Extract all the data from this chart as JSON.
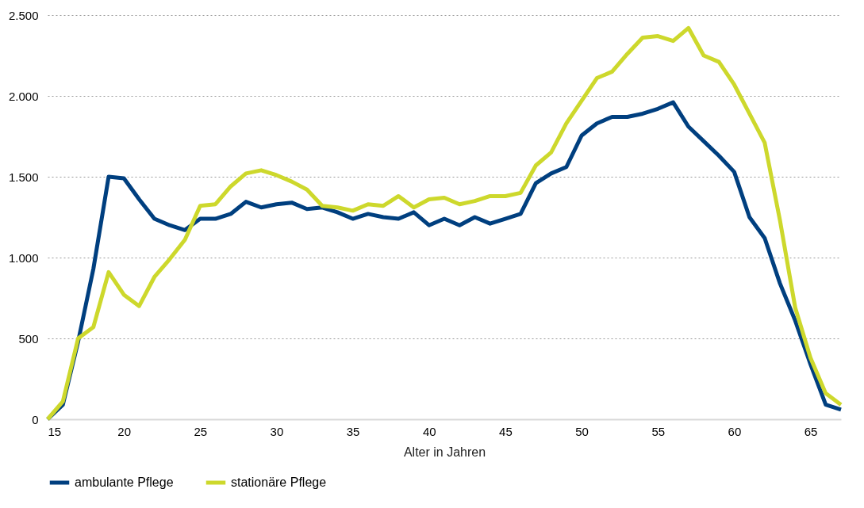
{
  "chart_data": {
    "type": "line",
    "xlabel": "Alter in Jahren",
    "x": [
      15,
      16,
      17,
      18,
      19,
      20,
      21,
      22,
      23,
      24,
      25,
      26,
      27,
      28,
      29,
      30,
      31,
      32,
      33,
      34,
      35,
      36,
      37,
      38,
      39,
      40,
      41,
      42,
      43,
      44,
      45,
      46,
      47,
      48,
      49,
      50,
      51,
      52,
      53,
      54,
      55,
      56,
      57,
      58,
      59,
      60,
      61,
      62,
      63,
      64,
      65,
      66,
      67
    ],
    "series": [
      {
        "name": "ambulante Pflege",
        "color": "#003f7f",
        "values": [
          0,
          90,
          480,
          930,
          1500,
          1490,
          1360,
          1240,
          1200,
          1170,
          1240,
          1240,
          1270,
          1345,
          1310,
          1330,
          1340,
          1300,
          1310,
          1280,
          1240,
          1270,
          1250,
          1240,
          1280,
          1200,
          1240,
          1200,
          1250,
          1210,
          1240,
          1270,
          1460,
          1520,
          1560,
          1755,
          1830,
          1870,
          1870,
          1890,
          1920,
          1960,
          1810,
          1720,
          1630,
          1530,
          1250,
          1120,
          840,
          610,
          340,
          90,
          60
        ]
      },
      {
        "name": "stationäre Pflege",
        "color": "#cdd82c",
        "values": [
          0,
          110,
          500,
          570,
          910,
          770,
          700,
          880,
          990,
          1110,
          1320,
          1330,
          1440,
          1520,
          1540,
          1510,
          1470,
          1420,
          1320,
          1310,
          1290,
          1330,
          1320,
          1380,
          1310,
          1360,
          1370,
          1330,
          1350,
          1380,
          1380,
          1400,
          1570,
          1650,
          1830,
          1970,
          2110,
          2150,
          2260,
          2360,
          2370,
          2340,
          2420,
          2250,
          2210,
          2070,
          1890,
          1710,
          1230,
          690,
          380,
          160,
          90
        ]
      }
    ],
    "xlim": [
      15,
      67
    ],
    "xticks": [
      15,
      20,
      25,
      30,
      35,
      40,
      45,
      50,
      55,
      60,
      65
    ],
    "ylim": [
      0,
      2500
    ],
    "yticks": [
      0,
      500,
      {
        "value": 1000,
        "label": "1.000"
      },
      {
        "value": 1500,
        "label": "1.500"
      },
      {
        "value": 2000,
        "label": "2.000"
      },
      {
        "value": 2500,
        "label": "2.500"
      }
    ],
    "grid": "y",
    "legend": "bottom",
    "marker": "none",
    "line_style": "solid"
  }
}
